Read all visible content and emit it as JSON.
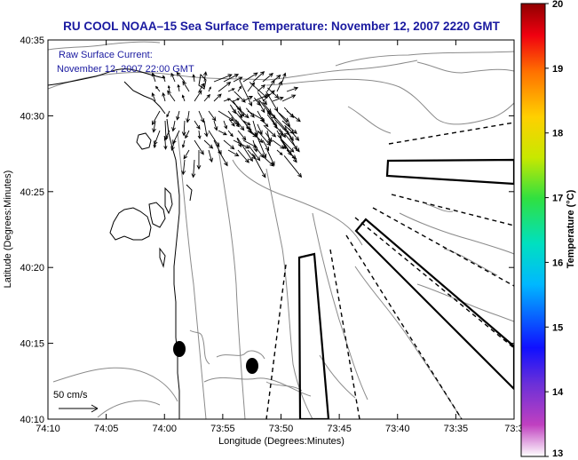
{
  "title": "RU COOL  NOAA–15  Sea Surface Temperature:  November 12, 2007 2220 GMT",
  "legend": {
    "line1": "Raw Surface Current:",
    "line2": "November 12, 2007 22:00 GMT"
  },
  "axes": {
    "xlabel": "Longitude (Degrees:Minutes)",
    "ylabel": "Latitude (Degrees:Minutes)",
    "xticks": [
      "74:10",
      "74:05",
      "74:00",
      "73:55",
      "73:50",
      "73:45",
      "73:40",
      "73:35",
      "73:3"
    ],
    "yticks": [
      "40:35",
      "40:30",
      "40:25",
      "40:20",
      "40:15",
      "40:10"
    ]
  },
  "scale_label": "50 cm/s",
  "colorbar": {
    "label": "Temperature (°C)",
    "ticks": [
      "20",
      "19",
      "18",
      "17",
      "16",
      "15",
      "14",
      "13"
    ],
    "min": 13,
    "max": 20
  }
}
